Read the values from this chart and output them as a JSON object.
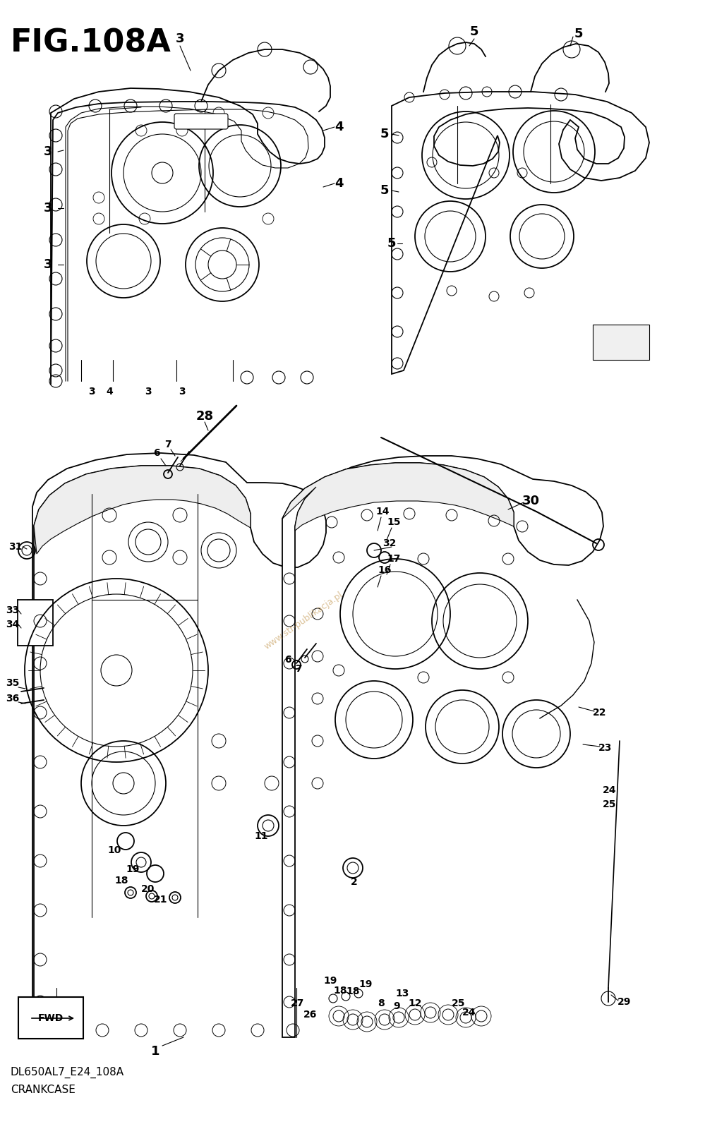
{
  "title": "FIG.108A",
  "subtitle1": "DL650AL7_E24_108A",
  "subtitle2": "CRANKCASE",
  "bg_color": "#ffffff",
  "lc": "#000000",
  "watermark": "www.str-publikacja.pl",
  "watermark_color": "#c8a060",
  "title_fontsize": 32,
  "label_fontsize": 13,
  "small_fontsize": 10,
  "subtitle_fontsize": 11
}
